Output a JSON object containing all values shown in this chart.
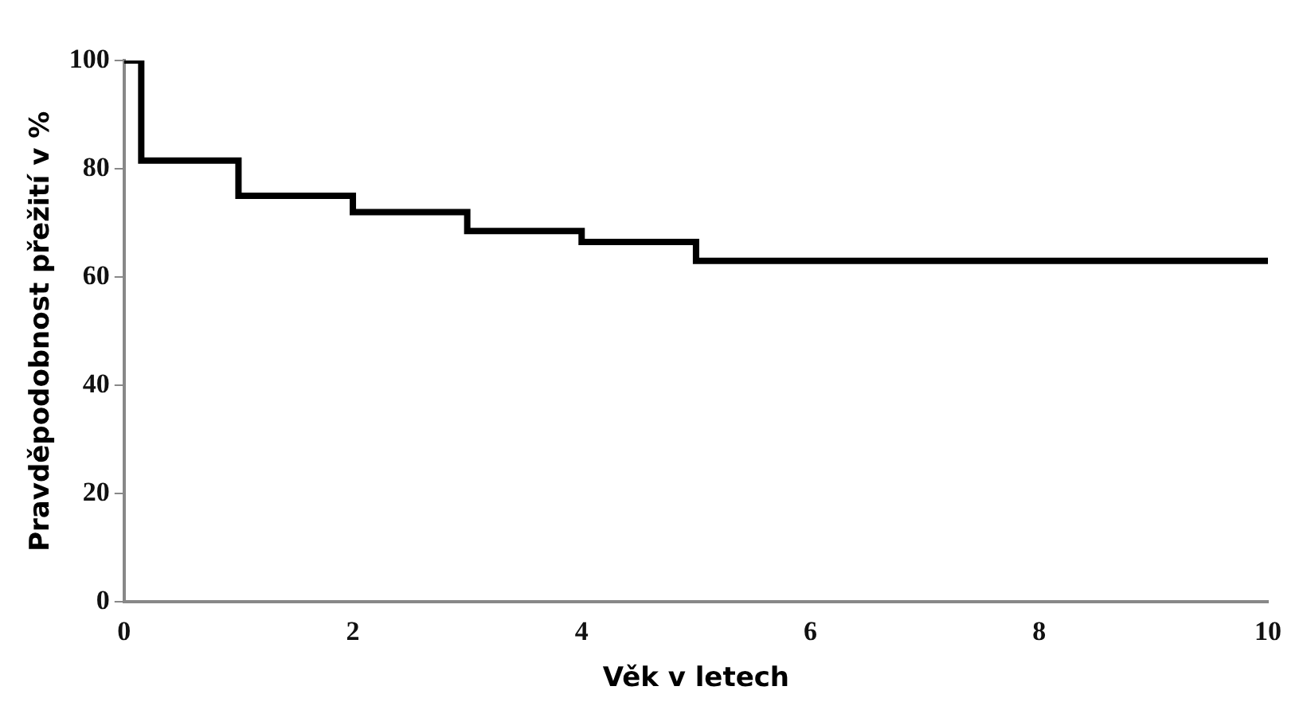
{
  "chart_data": {
    "type": "step",
    "xlabel": "Věk v letech",
    "ylabel": "Pravděpodobnost přežití v %",
    "x": [
      0,
      0.15,
      1,
      2,
      3,
      4,
      5,
      10
    ],
    "series": [
      {
        "color": "#000000",
        "values": [
          100,
          81.5,
          75,
          72,
          68.5,
          66.5,
          63,
          63
        ]
      }
    ],
    "xlim": [
      0,
      10
    ],
    "xticks": [
      0,
      2,
      4,
      6,
      8,
      10
    ],
    "ylim": [
      0,
      100
    ],
    "yticks": [
      0,
      20,
      40,
      60,
      80,
      100
    ],
    "grid": false,
    "legend": false
  }
}
